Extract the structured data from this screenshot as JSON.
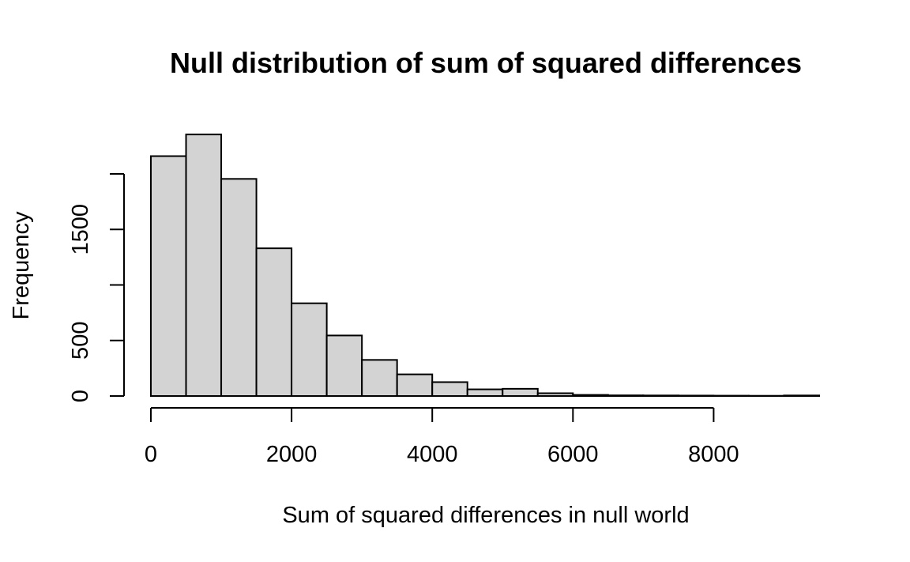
{
  "chart_data": {
    "type": "bar",
    "title": "Null distribution of sum of squared differences",
    "xlabel": "Sum of squared differences in null world",
    "ylabel": "Frequency",
    "bin_edges": [
      0,
      500,
      1000,
      1500,
      2000,
      2500,
      3000,
      3500,
      4000,
      4500,
      5000,
      5500,
      6000,
      6500,
      7000,
      7500,
      8000,
      8500,
      9000,
      9500
    ],
    "values": [
      2160,
      2355,
      1955,
      1330,
      835,
      545,
      325,
      195,
      125,
      60,
      65,
      25,
      10,
      6,
      5,
      4,
      3,
      2,
      5
    ],
    "xlim": [
      0,
      9500
    ],
    "ylim": [
      0,
      2000
    ],
    "xticks": [
      0,
      2000,
      4000,
      6000,
      8000
    ],
    "xtick_labels": [
      "0",
      "2000",
      "4000",
      "6000",
      "8000"
    ],
    "yticks": [
      0,
      500,
      1000,
      1500,
      2000
    ],
    "ytick_labels": [
      "0",
      "500",
      "",
      "1500",
      ""
    ],
    "bar_fill": "#d3d3d3",
    "bar_stroke": "#000000",
    "grid": false,
    "legend": "none"
  }
}
